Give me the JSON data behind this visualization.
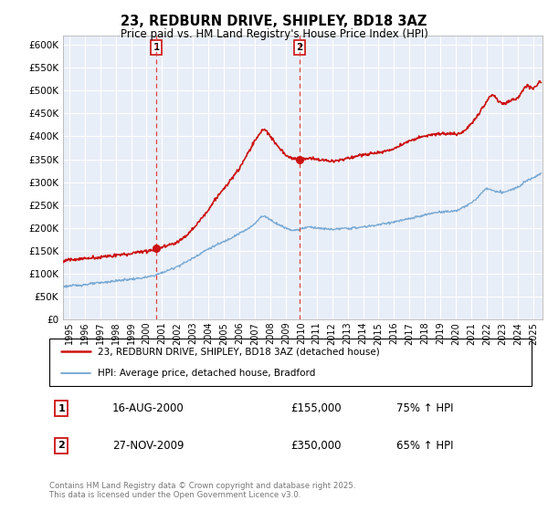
{
  "title": "23, REDBURN DRIVE, SHIPLEY, BD18 3AZ",
  "subtitle": "Price paid vs. HM Land Registry's House Price Index (HPI)",
  "ylim": [
    0,
    620000
  ],
  "xlim_start": 1994.6,
  "xlim_end": 2025.6,
  "legend_line1": "23, REDBURN DRIVE, SHIPLEY, BD18 3AZ (detached house)",
  "legend_line2": "HPI: Average price, detached house, Bradford",
  "marker1_date": 2000.62,
  "marker1_value": 155000,
  "marker2_date": 2009.9,
  "marker2_value": 350000,
  "hpi_color": "#7aaad4",
  "price_color": "#cc1111",
  "bg_color": "#e8eef7",
  "grid_color": "#ffffff",
  "footer": "Contains HM Land Registry data © Crown copyright and database right 2025.\nThis data is licensed under the Open Government Licence v3.0.",
  "hpi_base_x": [
    1994.6,
    1995,
    1996,
    1997,
    1998,
    1999,
    2000,
    2001,
    2002,
    2003,
    2004,
    2005,
    2006,
    2007,
    2007.5,
    2008,
    2008.5,
    2009,
    2009.5,
    2010,
    2010.5,
    2011,
    2011.5,
    2012,
    2012.5,
    2013,
    2013.5,
    2014,
    2015,
    2016,
    2017,
    2018,
    2019,
    2020,
    2020.5,
    2021,
    2021.5,
    2022,
    2022.5,
    2023,
    2023.5,
    2024,
    2024.5,
    2025,
    2025.5
  ],
  "hpi_base_y": [
    72000,
    73000,
    76000,
    80000,
    84000,
    88000,
    92000,
    102000,
    116000,
    134000,
    154000,
    170000,
    188000,
    210000,
    225000,
    218000,
    208000,
    200000,
    195000,
    198000,
    202000,
    200000,
    198000,
    197000,
    198000,
    199000,
    200000,
    202000,
    207000,
    213000,
    220000,
    228000,
    235000,
    238000,
    245000,
    255000,
    270000,
    285000,
    280000,
    278000,
    282000,
    290000,
    302000,
    310000,
    320000
  ],
  "price_base_x": [
    1994.6,
    1995,
    1996,
    1997,
    1997.5,
    1998,
    1999,
    2000,
    2000.5,
    2001,
    2001.5,
    2002,
    2002.5,
    2003,
    2003.5,
    2004,
    2004.5,
    2005,
    2005.5,
    2006,
    2006.5,
    2007,
    2007.3,
    2007.6,
    2008,
    2008.5,
    2009,
    2009.5,
    2009.9,
    2010,
    2010.5,
    2011,
    2011.5,
    2012,
    2012.5,
    2013,
    2013.5,
    2014,
    2014.5,
    2015,
    2015.5,
    2016,
    2016.5,
    2017,
    2017.5,
    2018,
    2018.5,
    2019,
    2019.5,
    2020,
    2020.5,
    2021,
    2021.5,
    2022,
    2022.3,
    2022.7,
    2023,
    2023.5,
    2024,
    2024.3,
    2024.7,
    2025,
    2025.3,
    2025.5
  ],
  "price_base_y": [
    128000,
    130000,
    133000,
    136000,
    138000,
    140000,
    144000,
    150000,
    152000,
    158000,
    163000,
    170000,
    182000,
    198000,
    218000,
    240000,
    265000,
    285000,
    308000,
    330000,
    360000,
    390000,
    405000,
    415000,
    400000,
    378000,
    360000,
    352000,
    350000,
    350000,
    352000,
    350000,
    348000,
    346000,
    348000,
    352000,
    356000,
    360000,
    362000,
    364000,
    368000,
    374000,
    382000,
    390000,
    396000,
    400000,
    404000,
    405000,
    406000,
    405000,
    410000,
    428000,
    450000,
    478000,
    490000,
    480000,
    472000,
    478000,
    485000,
    500000,
    510000,
    505000,
    515000,
    520000
  ]
}
